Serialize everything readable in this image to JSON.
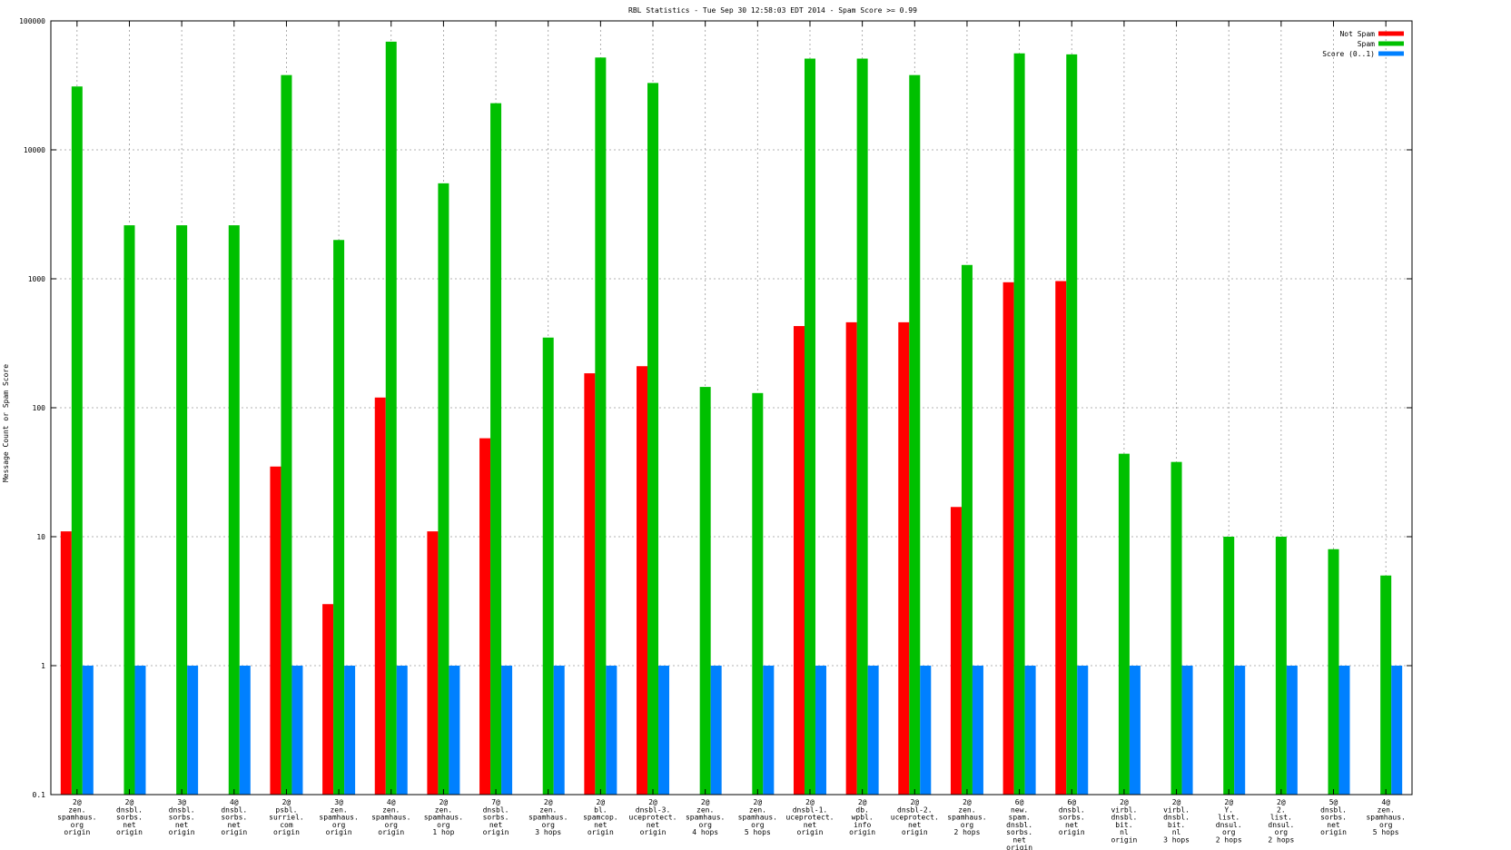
{
  "chart_data": {
    "type": "bar",
    "title": "RBL Statistics - Tue Sep 30 12:58:03 EDT 2014 - Spam Score >= 0.99",
    "ylabel": "Message Count or Spam Score",
    "xlabel": "",
    "yscale": "log",
    "ylim": [
      0.1,
      100000
    ],
    "yticks": [
      "0.1",
      "1",
      "10",
      "100",
      "1000",
      "10000",
      "100000"
    ],
    "grid": true,
    "legend_position": "top-right",
    "categories": [
      [
        "2@",
        "zen.",
        "spamhaus.",
        "org",
        "origin"
      ],
      [
        "2@",
        "dnsbl.",
        "sorbs.",
        "net",
        "origin"
      ],
      [
        "3@",
        "dnsbl.",
        "sorbs.",
        "net",
        "origin"
      ],
      [
        "4@",
        "dnsbl.",
        "sorbs.",
        "net",
        "origin"
      ],
      [
        "2@",
        "psbl.",
        "surriel.",
        "com",
        "origin"
      ],
      [
        "3@",
        "zen.",
        "spamhaus.",
        "org",
        "origin"
      ],
      [
        "4@",
        "zen.",
        "spamhaus.",
        "org",
        "origin"
      ],
      [
        "2@",
        "zen.",
        "spamhaus.",
        "org",
        "1 hop"
      ],
      [
        "7@",
        "dnsbl.",
        "sorbs.",
        "net",
        "origin"
      ],
      [
        "2@",
        "zen.",
        "spamhaus.",
        "org",
        "3 hops"
      ],
      [
        "2@",
        "bl.",
        "spamcop.",
        "net",
        "origin"
      ],
      [
        "2@",
        "dnsbl-3.",
        "uceprotect.",
        "net",
        "origin"
      ],
      [
        "2@",
        "zen.",
        "spamhaus.",
        "org",
        "4 hops"
      ],
      [
        "2@",
        "zen.",
        "spamhaus.",
        "org",
        "5 hops"
      ],
      [
        "2@",
        "dnsbl-1.",
        "uceprotect.",
        "net",
        "origin"
      ],
      [
        "2@",
        "db.",
        "wpbl.",
        "info",
        "origin"
      ],
      [
        "2@",
        "dnsbl-2.",
        "uceprotect.",
        "net",
        "origin"
      ],
      [
        "2@",
        "zen.",
        "spamhaus.",
        "org",
        "2 hops"
      ],
      [
        "6@",
        "new.",
        "spam.",
        "dnsbl.",
        "sorbs.",
        "net",
        "origin"
      ],
      [
        "6@",
        "dnsbl.",
        "sorbs.",
        "net",
        "origin"
      ],
      [
        "2@",
        "virbl.",
        "dnsbl.",
        "bit.",
        "nl",
        "origin"
      ],
      [
        "2@",
        "virbl.",
        "dnsbl.",
        "bit.",
        "nl",
        "3 hops"
      ],
      [
        "2@",
        "Y.",
        "list.",
        "dnsul.",
        "org",
        "2 hops"
      ],
      [
        "2@",
        "2.",
        "list.",
        "dnsul.",
        "org",
        "2 hops"
      ],
      [
        "5@",
        "dnsbl.",
        "sorbs.",
        "net",
        "origin"
      ],
      [
        "4@",
        "zen.",
        "spamhaus.",
        "org",
        "5 hops"
      ]
    ],
    "series": [
      {
        "name": "Not Spam",
        "color": "#ff0000",
        "values": [
          11,
          null,
          null,
          null,
          35,
          3,
          120,
          11,
          58,
          null,
          185,
          210,
          null,
          null,
          430,
          460,
          460,
          17,
          940,
          960,
          null,
          null,
          null,
          null,
          null,
          null
        ]
      },
      {
        "name": "Spam",
        "color": "#00c000",
        "values": [
          31000,
          2600,
          2600,
          2600,
          38000,
          2000,
          69000,
          5500,
          23000,
          350,
          52000,
          33000,
          145,
          130,
          51000,
          51000,
          38000,
          1280,
          56000,
          55000,
          44,
          38,
          10,
          10,
          8,
          5
        ]
      },
      {
        "name": "Score (0..1)",
        "color": "#0080ff",
        "values": [
          1,
          1,
          1,
          1,
          1,
          1,
          1,
          1,
          1,
          1,
          1,
          1,
          1,
          1,
          1,
          1,
          1,
          1,
          1,
          1,
          1,
          1,
          1,
          1,
          1,
          1
        ]
      }
    ]
  }
}
